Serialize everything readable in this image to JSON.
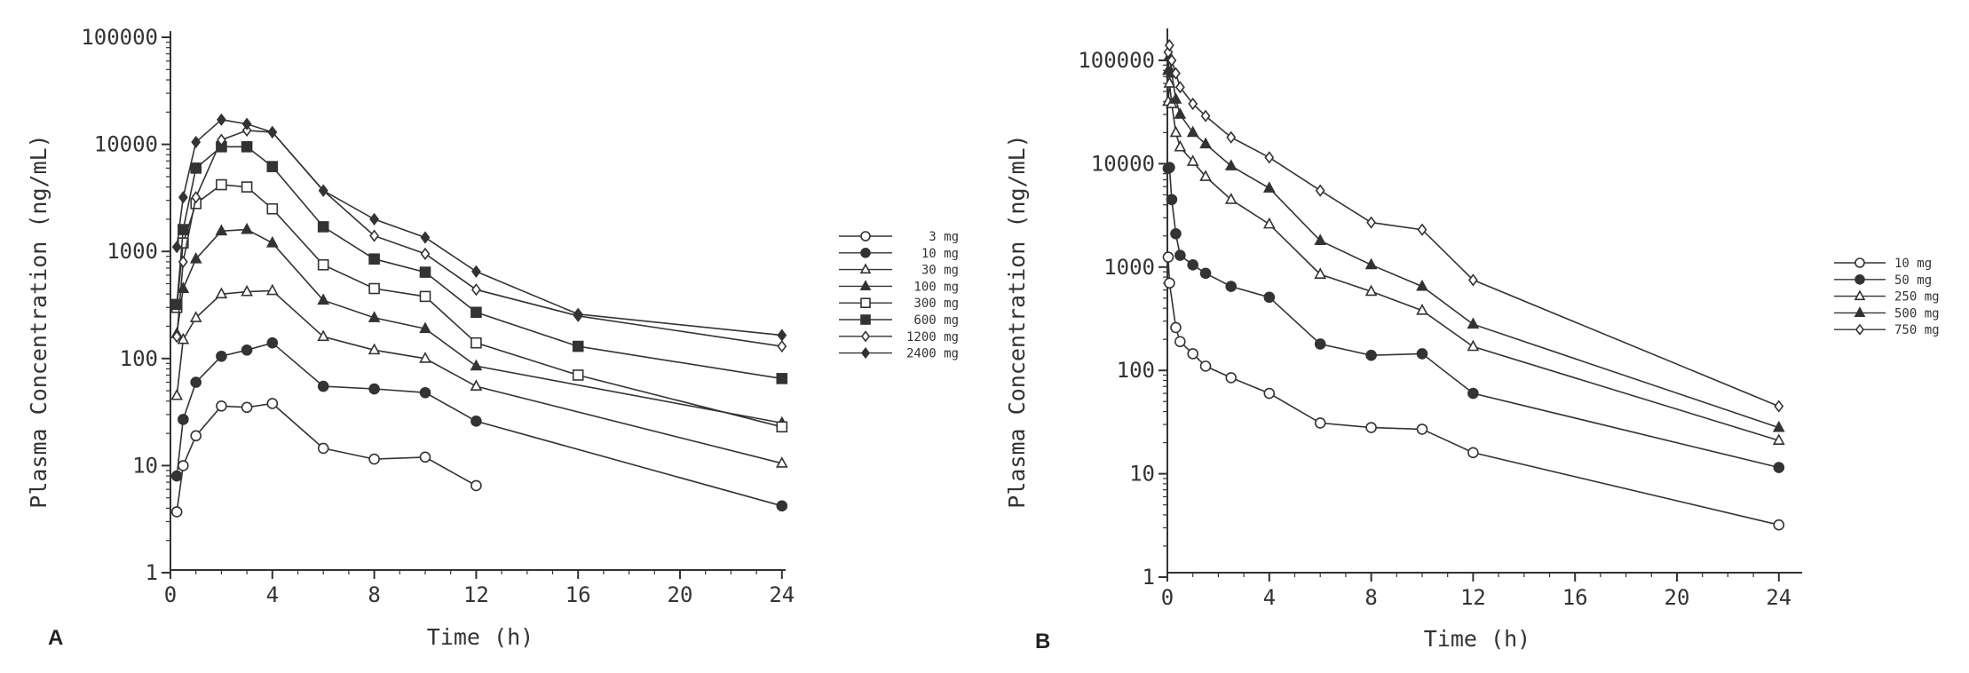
{
  "chart_data": [
    {
      "type": "line",
      "panel": "A",
      "xlabel": "Time (h)",
      "ylabel": "Plasma Concentration (ng/mL)",
      "yscale": "log",
      "xlim": [
        0,
        25
      ],
      "ylim": [
        1,
        100000
      ],
      "xticks": [
        0,
        4,
        8,
        12,
        16,
        20,
        24
      ],
      "yticks": [
        1,
        10,
        100,
        1000,
        10000,
        100000
      ],
      "legend_position": "right",
      "series": [
        {
          "name": "3 mg",
          "marker": "circle-open",
          "x": [
            0.25,
            0.5,
            1,
            2,
            3,
            4,
            6,
            8,
            10,
            12
          ],
          "y": [
            3.7,
            10,
            19,
            36,
            35,
            38,
            14.5,
            11.5,
            12,
            6.5
          ]
        },
        {
          "name": "10 mg",
          "marker": "circle-filled",
          "x": [
            0.25,
            0.5,
            1,
            2,
            3,
            4,
            6,
            8,
            10,
            12,
            24
          ],
          "y": [
            8,
            27,
            60,
            105,
            120,
            140,
            55,
            52,
            48,
            26,
            4.2
          ]
        },
        {
          "name": "30 mg",
          "marker": "triangle-open",
          "x": [
            0.25,
            0.5,
            1,
            2,
            3,
            4,
            6,
            8,
            10,
            12,
            24
          ],
          "y": [
            45,
            150,
            240,
            400,
            420,
            430,
            160,
            120,
            100,
            55,
            10.5
          ]
        },
        {
          "name": "100 mg",
          "marker": "triangle-filled",
          "x": [
            0.25,
            0.5,
            1,
            2,
            3,
            4,
            6,
            8,
            10,
            12,
            24
          ],
          "y": [
            170,
            450,
            850,
            1550,
            1600,
            1200,
            350,
            240,
            190,
            85,
            25
          ]
        },
        {
          "name": "300 mg",
          "marker": "square-open",
          "x": [
            0.25,
            0.5,
            1,
            2,
            3,
            4,
            6,
            8,
            10,
            12,
            16,
            24
          ],
          "y": [
            300,
            1200,
            2800,
            4200,
            4000,
            2500,
            750,
            450,
            380,
            140,
            70,
            23
          ]
        },
        {
          "name": "600 mg",
          "marker": "square-filled",
          "x": [
            0.25,
            0.5,
            1,
            2,
            3,
            4,
            6,
            8,
            10,
            12,
            16,
            24
          ],
          "y": [
            320,
            1600,
            6000,
            9500,
            9500,
            6200,
            1700,
            850,
            640,
            270,
            130,
            65
          ]
        },
        {
          "name": "1200 mg",
          "marker": "diamond-open",
          "x": [
            0.25,
            0.5,
            1,
            2,
            3,
            4,
            6,
            8,
            10,
            12,
            16,
            24
          ],
          "y": [
            160,
            800,
            3200,
            11000,
            13500,
            13000,
            3700,
            1400,
            950,
            440,
            250,
            130
          ]
        },
        {
          "name": "2400 mg",
          "marker": "diamond-filled",
          "x": [
            0.25,
            0.5,
            1,
            2,
            3,
            4,
            6,
            8,
            10,
            12,
            16,
            24
          ],
          "y": [
            1100,
            3200,
            10500,
            17000,
            15500,
            13000,
            3700,
            2000,
            1350,
            650,
            260,
            165
          ]
        }
      ]
    },
    {
      "type": "line",
      "panel": "B",
      "xlabel": "Time (h)",
      "ylabel": "Plasma Concentration (ng/mL)",
      "yscale": "log",
      "xlim": [
        0,
        25
      ],
      "ylim": [
        1,
        200000
      ],
      "xticks": [
        0,
        4,
        8,
        12,
        16,
        20,
        24
      ],
      "yticks": [
        1,
        10,
        100,
        1000,
        10000,
        100000
      ],
      "legend_position": "right",
      "series": [
        {
          "name": "10 mg",
          "marker": "circle-open",
          "x": [
            0.033,
            0.083,
            0.33,
            0.5,
            1,
            1.5,
            2.5,
            4,
            6,
            8,
            10,
            12,
            24
          ],
          "y": [
            1250,
            700,
            260,
            190,
            145,
            110,
            85,
            60,
            31,
            28,
            27,
            16,
            3.2
          ]
        },
        {
          "name": "50 mg",
          "marker": "circle-filled",
          "x": [
            0.033,
            0.083,
            0.17,
            0.33,
            0.5,
            1,
            1.5,
            2.5,
            4,
            6,
            8,
            10,
            12,
            24
          ],
          "y": [
            9000,
            9200,
            4500,
            2100,
            1300,
            1050,
            870,
            650,
            510,
            180,
            140,
            145,
            60,
            11.5
          ]
        },
        {
          "name": "250 mg",
          "marker": "triangle-open",
          "x": [
            0.033,
            0.083,
            0.17,
            0.33,
            0.5,
            1,
            1.5,
            2.5,
            4,
            6,
            8,
            10,
            12,
            24
          ],
          "y": [
            40000,
            60000,
            38000,
            20000,
            14500,
            10500,
            7500,
            4500,
            2600,
            850,
            580,
            380,
            170,
            21
          ]
        },
        {
          "name": "500 mg",
          "marker": "triangle-filled",
          "x": [
            0.033,
            0.083,
            0.17,
            0.33,
            0.5,
            1,
            1.5,
            2.5,
            4,
            6,
            8,
            10,
            12,
            24
          ],
          "y": [
            80000,
            110000,
            75000,
            42000,
            30000,
            20000,
            15500,
            9500,
            5800,
            1800,
            1050,
            650,
            280,
            28
          ]
        },
        {
          "name": "750 mg",
          "marker": "diamond-open",
          "x": [
            0.033,
            0.083,
            0.17,
            0.33,
            0.5,
            1,
            1.5,
            2.5,
            4,
            6,
            8,
            10,
            12,
            24
          ],
          "y": [
            120000,
            140000,
            100000,
            75000,
            55000,
            38000,
            29000,
            18000,
            11500,
            5500,
            2700,
            2300,
            750,
            45
          ]
        }
      ]
    }
  ],
  "panels": {
    "A": {
      "letter": "A"
    },
    "B": {
      "letter": "B"
    }
  },
  "colors": {
    "ink": "#333333",
    "background": "#ffffff"
  }
}
